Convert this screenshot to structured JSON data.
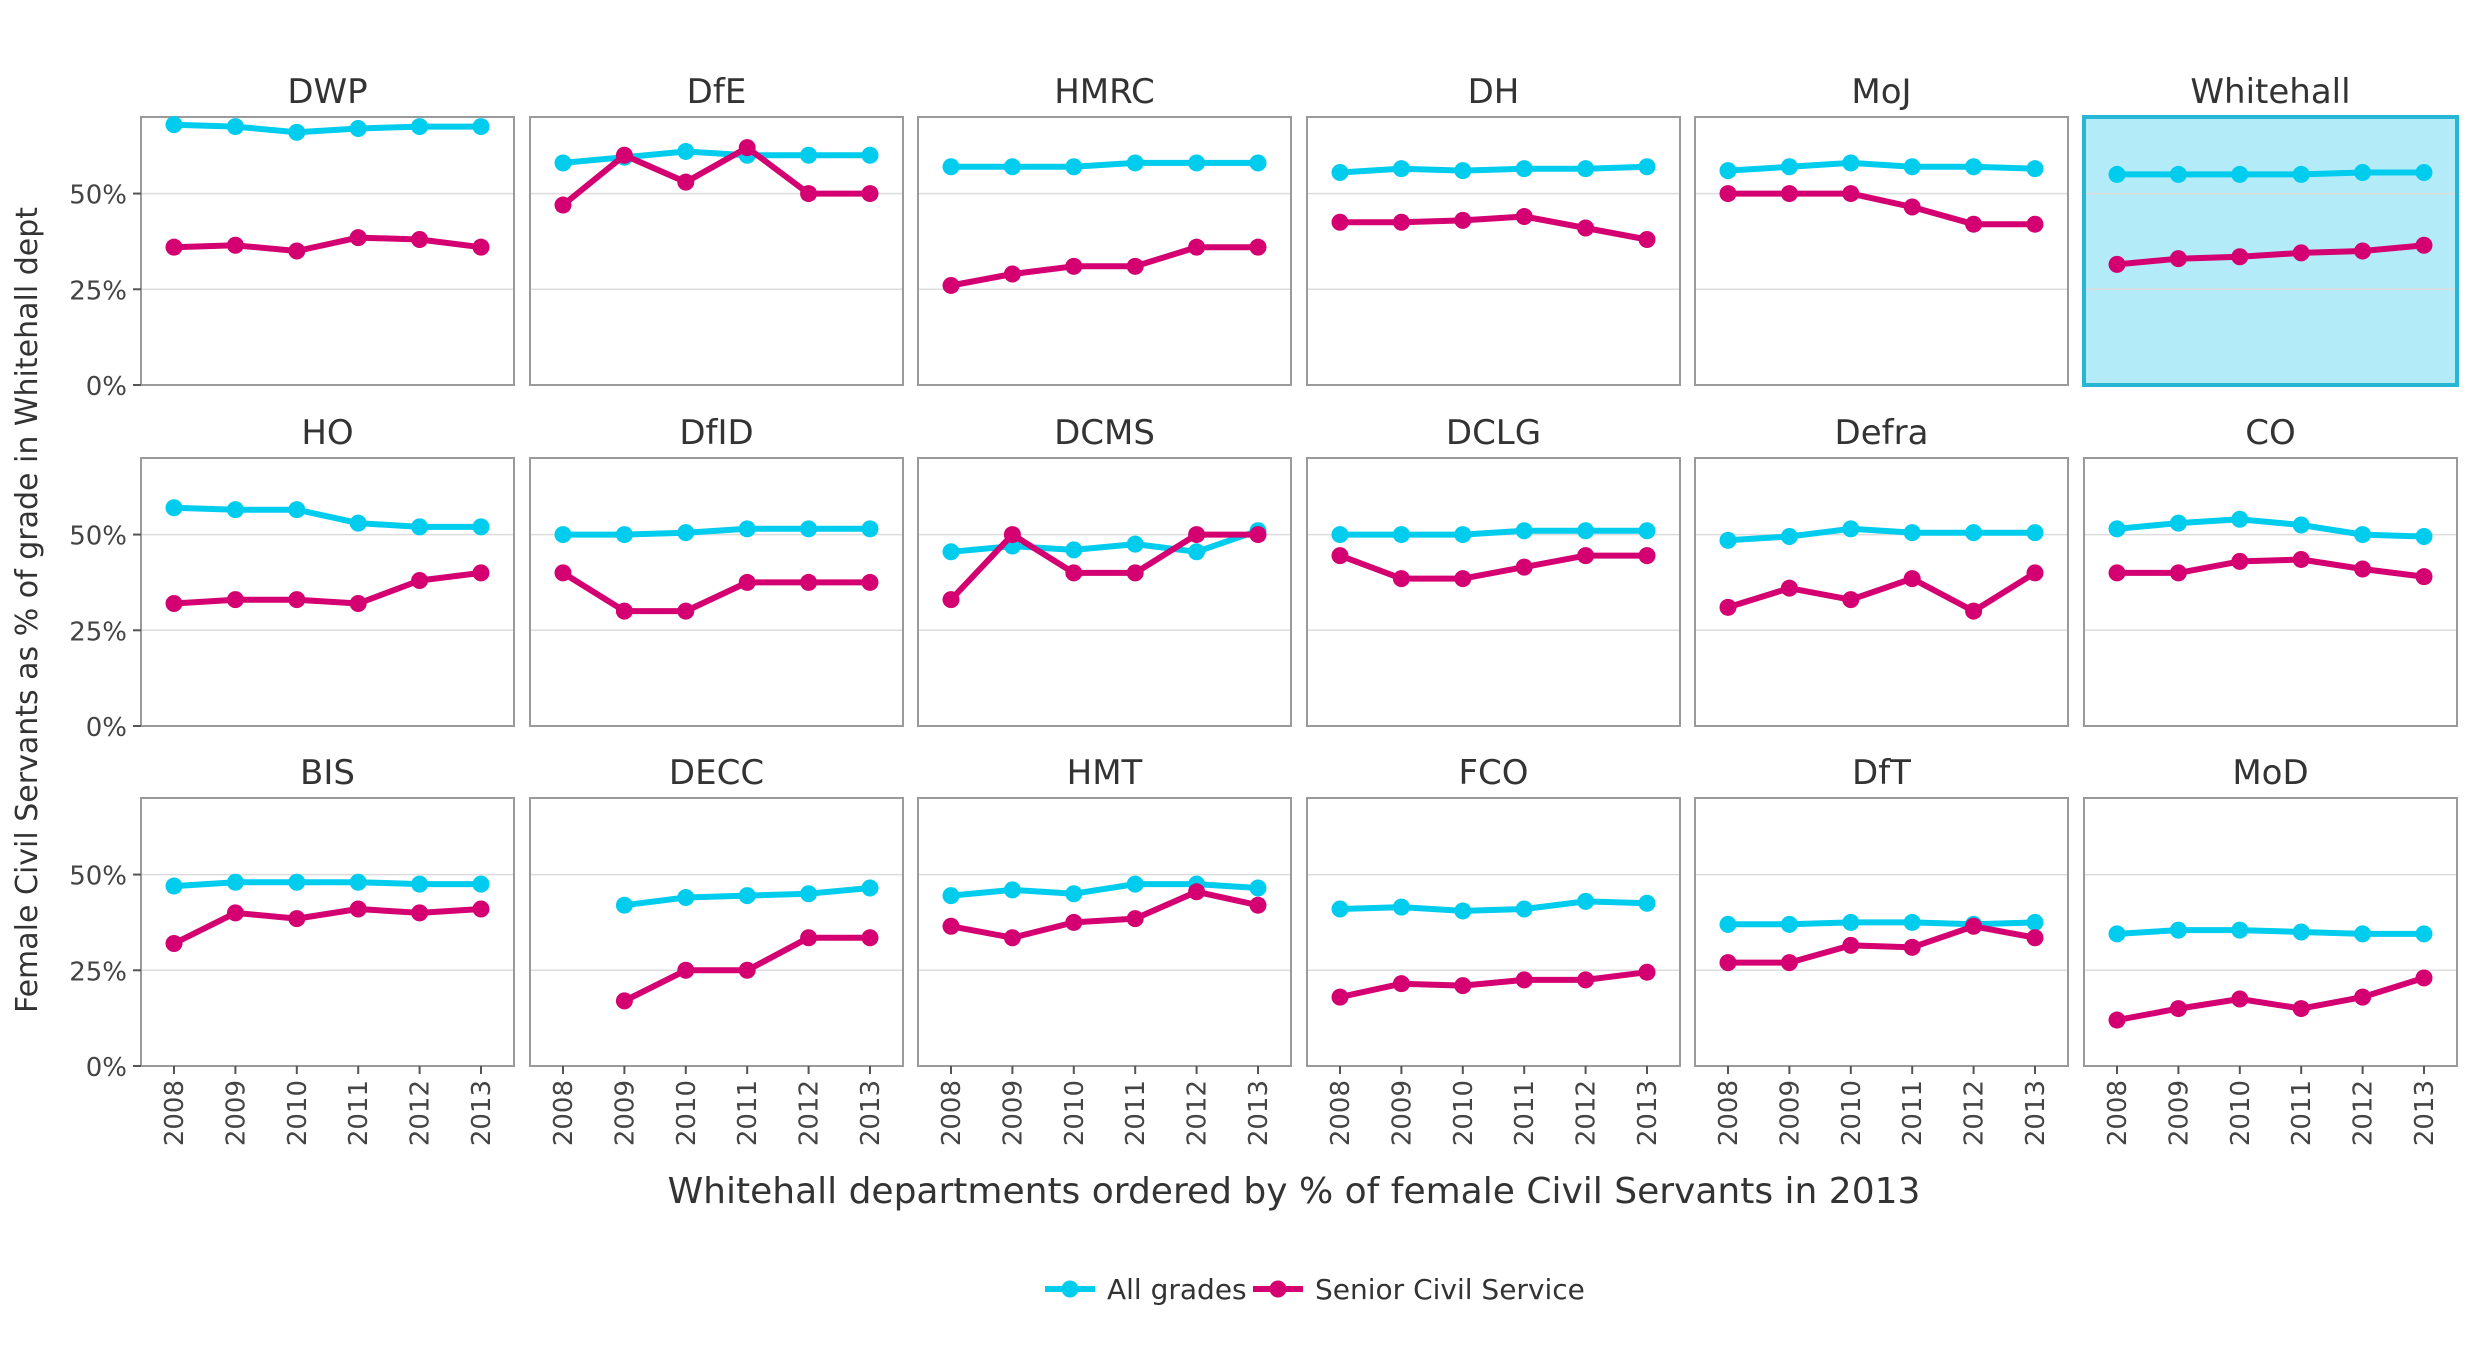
{
  "chart_data": {
    "type": "line",
    "layout": "small-multiples",
    "xlabel": "Whitehall departments ordered by % of female Civil Servants in 2013",
    "ylabel": "Female Civil Servants as % of grade in Whitehall dept",
    "x": [
      "2008",
      "2009",
      "2010",
      "2011",
      "2012",
      "2013"
    ],
    "y_ticks": [
      "0%",
      "25%",
      "50%"
    ],
    "ylim": [
      0,
      70
    ],
    "grid": true,
    "legend_position": "bottom",
    "legend": [
      {
        "name": "All grades",
        "color": "#00ccee"
      },
      {
        "name": "Senior Civil Service",
        "color": "#d40072"
      }
    ],
    "highlight_color": "#b3ecf8",
    "highlight_border": "#27b6d4",
    "panels": [
      {
        "title": "DWP",
        "highlight": false,
        "all_grades": [
          68,
          67.5,
          66,
          67,
          67.5,
          67.5
        ],
        "senior": [
          36,
          36.5,
          35,
          38.5,
          38,
          36
        ]
      },
      {
        "title": "DfE",
        "highlight": false,
        "all_grades": [
          58,
          59.5,
          61,
          60,
          60,
          60
        ],
        "senior": [
          47,
          60,
          53,
          62,
          50,
          50
        ]
      },
      {
        "title": "HMRC",
        "highlight": false,
        "all_grades": [
          57,
          57,
          57,
          58,
          58,
          58
        ],
        "senior": [
          26,
          29,
          31,
          31,
          36,
          36
        ]
      },
      {
        "title": "DH",
        "highlight": false,
        "all_grades": [
          55.5,
          56.5,
          56,
          56.5,
          56.5,
          57
        ],
        "senior": [
          42.5,
          42.5,
          43,
          44,
          41,
          38
        ]
      },
      {
        "title": "MoJ",
        "highlight": false,
        "all_grades": [
          56,
          57,
          58,
          57,
          57,
          56.5
        ],
        "senior": [
          50,
          50,
          50,
          46.5,
          42,
          42
        ]
      },
      {
        "title": "Whitehall",
        "highlight": true,
        "all_grades": [
          55,
          55,
          55,
          55,
          55.5,
          55.5
        ],
        "senior": [
          31.5,
          33,
          33.5,
          34.5,
          35,
          36.5
        ]
      },
      {
        "title": "HO",
        "highlight": false,
        "all_grades": [
          57,
          56.5,
          56.5,
          53,
          52,
          52
        ],
        "senior": [
          32,
          33,
          33,
          32,
          38,
          40
        ]
      },
      {
        "title": "DfID",
        "highlight": false,
        "all_grades": [
          50,
          50,
          50.5,
          51.5,
          51.5,
          51.5
        ],
        "senior": [
          40,
          30,
          30,
          37.5,
          37.5,
          37.5
        ]
      },
      {
        "title": "DCMS",
        "highlight": false,
        "all_grades": [
          45.5,
          47,
          46,
          47.5,
          45.5,
          51
        ],
        "senior": [
          33,
          50,
          40,
          40,
          50,
          50
        ]
      },
      {
        "title": "DCLG",
        "highlight": false,
        "all_grades": [
          50,
          50,
          50,
          51,
          51,
          51
        ],
        "senior": [
          44.5,
          38.5,
          38.5,
          41.5,
          44.5,
          44.5
        ]
      },
      {
        "title": "Defra",
        "highlight": false,
        "all_grades": [
          48.5,
          49.5,
          51.5,
          50.5,
          50.5,
          50.5
        ],
        "senior": [
          31,
          36,
          33,
          38.5,
          30,
          40
        ]
      },
      {
        "title": "CO",
        "highlight": false,
        "all_grades": [
          51.5,
          53,
          54,
          52.5,
          50,
          49.5
        ],
        "senior": [
          40,
          40,
          43,
          43.5,
          41,
          39
        ]
      },
      {
        "title": "BIS",
        "highlight": false,
        "all_grades": [
          47,
          48,
          48,
          48,
          47.5,
          47.5
        ],
        "senior": [
          32,
          40,
          38.5,
          41,
          40,
          41
        ]
      },
      {
        "title": "DECC",
        "highlight": false,
        "all_grades": [
          null,
          42,
          44,
          44.5,
          45,
          46.5
        ],
        "senior": [
          null,
          17,
          25,
          25,
          33.5,
          33.5
        ]
      },
      {
        "title": "HMT",
        "highlight": false,
        "all_grades": [
          44.5,
          46,
          45,
          47.5,
          47.5,
          46.5
        ],
        "senior": [
          36.5,
          33.5,
          37.5,
          38.5,
          45.5,
          42
        ]
      },
      {
        "title": "FCO",
        "highlight": false,
        "all_grades": [
          41,
          41.5,
          40.5,
          41,
          43,
          42.5
        ],
        "senior": [
          18,
          21.5,
          21,
          22.5,
          22.5,
          24.5
        ]
      },
      {
        "title": "DfT",
        "highlight": false,
        "all_grades": [
          37,
          37,
          37.5,
          37.5,
          37,
          37.5
        ],
        "senior": [
          27,
          27,
          31.5,
          31,
          36.5,
          33.5
        ]
      },
      {
        "title": "MoD",
        "highlight": false,
        "all_grades": [
          34.5,
          35.5,
          35.5,
          35,
          34.5,
          34.5
        ],
        "senior": [
          12,
          15,
          17.5,
          15,
          18,
          23
        ]
      }
    ]
  }
}
